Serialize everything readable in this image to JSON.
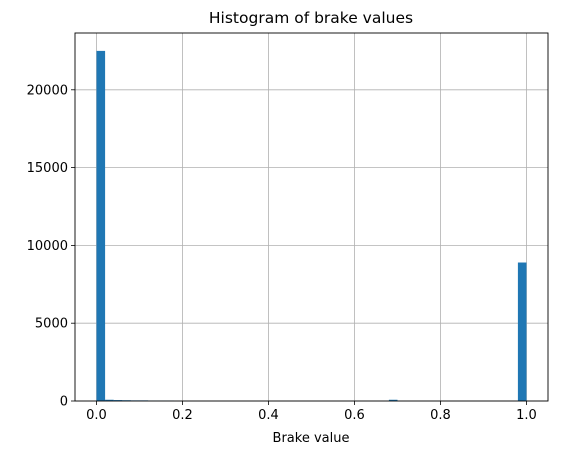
{
  "chart_data": {
    "type": "bar",
    "title": "Histogram of brake values",
    "xlabel": "Brake value",
    "ylabel": "",
    "xlim": [
      -0.05,
      1.05
    ],
    "ylim": [
      0,
      23650
    ],
    "xticks": [
      0.0,
      0.2,
      0.4,
      0.6,
      0.8,
      1.0
    ],
    "xtick_labels": [
      "0.0",
      "0.2",
      "0.4",
      "0.6",
      "0.8",
      "1.0"
    ],
    "yticks": [
      0,
      5000,
      10000,
      15000,
      20000
    ],
    "ytick_labels": [
      "0",
      "5000",
      "10000",
      "15000",
      "20000"
    ],
    "grid": true,
    "color": "#1f77b4",
    "bin_width": 0.02,
    "bin_starts": [
      0.0,
      0.02,
      0.04,
      0.06,
      0.08,
      0.1,
      0.12,
      0.14,
      0.16,
      0.68,
      0.98
    ],
    "values": [
      22500,
      80,
      60,
      50,
      40,
      40,
      30,
      30,
      30,
      80,
      8900
    ]
  }
}
